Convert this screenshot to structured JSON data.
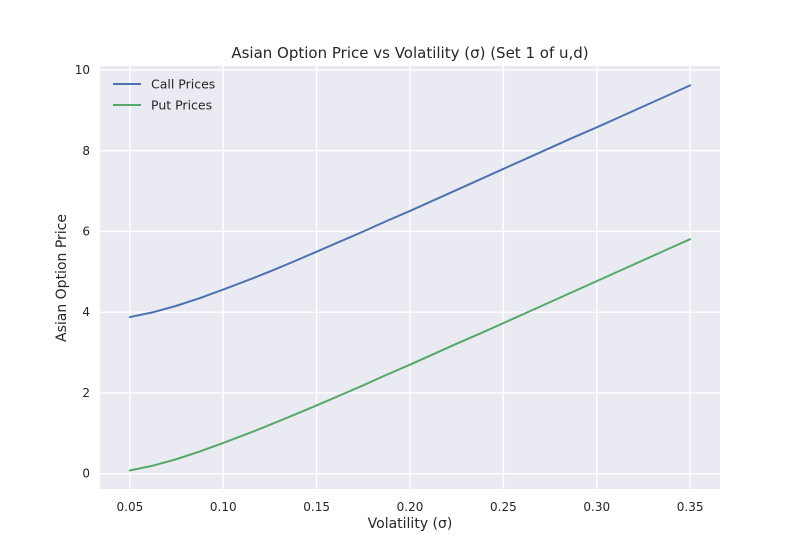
{
  "chart_data": {
    "type": "line",
    "title": "Asian Option Price vs Volatility (σ) (Set 1 of u,d)",
    "xlabel": "Volatility (σ)",
    "ylabel": "Asian Option Price",
    "xlim": [
      0.034,
      0.366
    ],
    "ylim": [
      -0.38,
      10.1
    ],
    "xticks": [
      0.05,
      0.1,
      0.15,
      0.2,
      0.25,
      0.3,
      0.35
    ],
    "xtick_labels": [
      "0.05",
      "0.10",
      "0.15",
      "0.20",
      "0.25",
      "0.30",
      "0.35"
    ],
    "yticks": [
      0,
      2,
      4,
      6,
      8,
      10
    ],
    "ytick_labels": [
      "0",
      "2",
      "4",
      "6",
      "8",
      "10"
    ],
    "grid": true,
    "legend_position": "upper-left",
    "x": [
      0.05,
      0.0625,
      0.075,
      0.0875,
      0.1,
      0.1125,
      0.125,
      0.1375,
      0.15,
      0.1625,
      0.175,
      0.1875,
      0.2,
      0.2125,
      0.225,
      0.2375,
      0.25,
      0.2625,
      0.275,
      0.2875,
      0.3,
      0.3125,
      0.325,
      0.3375,
      0.35
    ],
    "series": [
      {
        "name": "Call Prices",
        "color": "#4c72b0",
        "values": [
          3.88,
          4.0,
          4.16,
          4.35,
          4.56,
          4.78,
          5.01,
          5.25,
          5.5,
          5.75,
          6.0,
          6.26,
          6.51,
          6.77,
          7.03,
          7.29,
          7.55,
          7.81,
          8.07,
          8.33,
          8.58,
          8.84,
          9.1,
          9.36,
          9.62
        ]
      },
      {
        "name": "Put Prices",
        "color": "#55a868",
        "values": [
          0.08,
          0.2,
          0.36,
          0.55,
          0.76,
          0.98,
          1.21,
          1.45,
          1.69,
          1.94,
          2.19,
          2.45,
          2.7,
          2.96,
          3.22,
          3.47,
          3.73,
          3.99,
          4.25,
          4.51,
          4.77,
          5.03,
          5.29,
          5.55,
          5.81
        ]
      }
    ]
  }
}
